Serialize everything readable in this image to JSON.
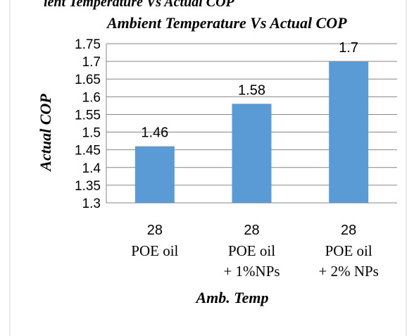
{
  "header_cropped": "ient Temperature Vs Actual COP",
  "chart_data": {
    "type": "bar",
    "title": "Ambient Temperature Vs Actual COP",
    "xlabel": "Amb. Temp",
    "ylabel": "Actual COP",
    "categories": [
      {
        "temp": "28",
        "lines": [
          "POE oil"
        ]
      },
      {
        "temp": "28",
        "lines": [
          "POE oil",
          "+ 1%NPs"
        ]
      },
      {
        "temp": "28",
        "lines": [
          "POE oil",
          "+ 2% NPs"
        ]
      }
    ],
    "values": [
      1.46,
      1.58,
      1.7
    ],
    "data_labels": [
      "1.46",
      "1.58",
      "1.7"
    ],
    "ylim": [
      1.3,
      1.75
    ],
    "yticks": [
      "1.3",
      "1.35",
      "1.4",
      "1.45",
      "1.5",
      "1.55",
      "1.6",
      "1.65",
      "1.7",
      "1.75"
    ],
    "grid": true,
    "bar_color": "#5b9bd5",
    "legend": "none"
  }
}
